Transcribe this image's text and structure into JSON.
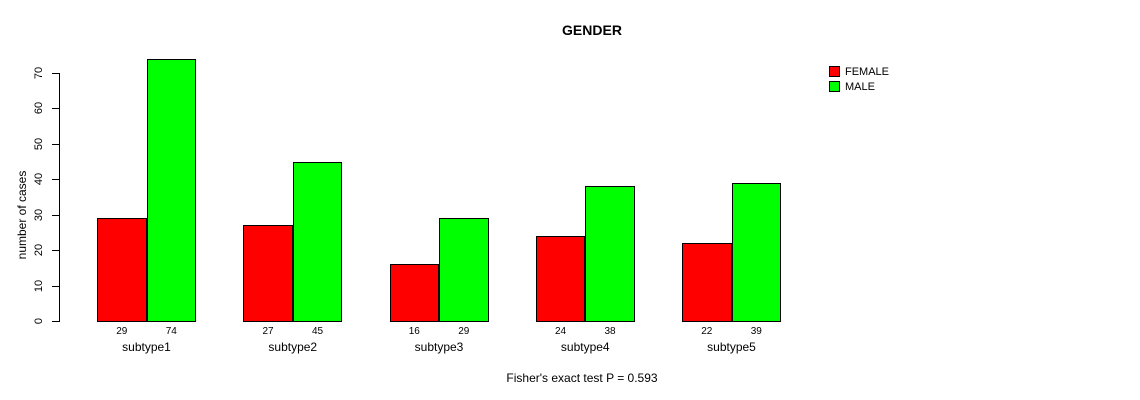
{
  "chart_data": {
    "type": "bar",
    "title": "GENDER",
    "ylabel": "number of cases",
    "xlabel": "",
    "caption": "Fisher's exact test P = 0.593",
    "categories": [
      "subtype1",
      "subtype2",
      "subtype3",
      "subtype4",
      "subtype5"
    ],
    "series": [
      {
        "name": "FEMALE",
        "color": "#FF0000",
        "values": [
          29,
          27,
          16,
          24,
          22
        ]
      },
      {
        "name": "MALE",
        "color": "#00FF00",
        "values": [
          74,
          45,
          29,
          38,
          39
        ]
      }
    ],
    "bar_value_labels": [
      [
        "29",
        "74"
      ],
      [
        "27",
        "45"
      ],
      [
        "16",
        "29"
      ],
      [
        "24",
        "38"
      ],
      [
        "22",
        "39"
      ]
    ],
    "ylim": [
      0,
      70
    ],
    "yticks": [
      0,
      10,
      20,
      30,
      40,
      50,
      60,
      70
    ],
    "grid": false,
    "legend_position": "top-right",
    "bar_border_color": "#000000",
    "background_color": "#FFFFFF",
    "text_color": "#000000"
  }
}
